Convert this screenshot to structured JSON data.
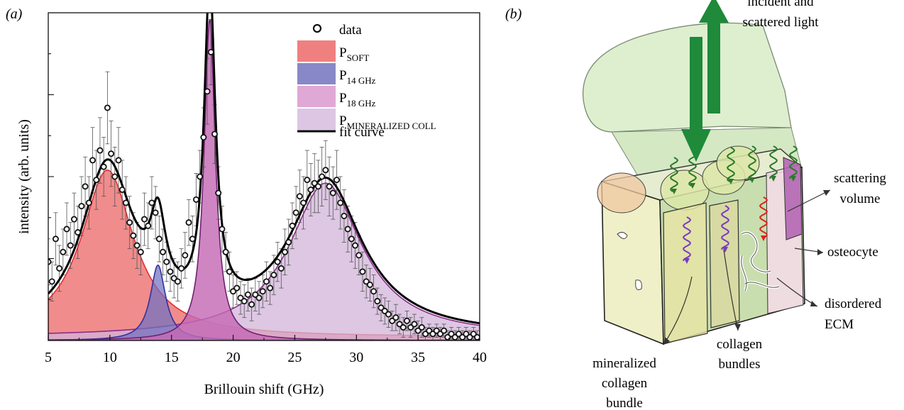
{
  "panel_a": {
    "tag": "(a)",
    "chart_data": {
      "type": "scatter",
      "xlabel": "Brillouin shift (GHz)",
      "ylabel": "intensity (arb. units)",
      "xlim": [
        5,
        40
      ],
      "ylim": [
        0,
        1
      ],
      "x_ticks": [
        "5",
        "10",
        "15",
        "20",
        "25",
        "30",
        "35",
        "40"
      ],
      "grid": false,
      "legend_position": "top-right",
      "legend": [
        {
          "key": "data",
          "label": "data",
          "sub": "",
          "kind": "marker",
          "color": "#111111"
        },
        {
          "key": "soft",
          "label": "P",
          "sub": "SOFT",
          "kind": "fill",
          "color": "#f08080"
        },
        {
          "key": "p14",
          "label": "P",
          "sub": "14 GHz",
          "kind": "fill",
          "color": "#8080c8"
        },
        {
          "key": "p18",
          "label": "P",
          "sub": "18 GHz",
          "kind": "fill",
          "color": "#e0a0d0"
        },
        {
          "key": "mineral",
          "label": "P",
          "sub": "MINERALIZED COLL",
          "kind": "fill",
          "color": "#d8bee0"
        },
        {
          "key": "fit",
          "label": "fit curve",
          "sub": "",
          "kind": "line",
          "color": "#000000"
        }
      ],
      "peaks": [
        {
          "key": "soft",
          "center": 9.8,
          "width": 2.6,
          "height": 0.51,
          "baseline": 0.01,
          "fill": "#f08080",
          "fill_opacity": 0.9,
          "stroke": "#e03030"
        },
        {
          "key": "mineral",
          "center": 27.5,
          "width": 3.6,
          "height": 0.47,
          "baseline": 0.01,
          "fill": "#d2b4da",
          "fill_opacity": 0.75,
          "stroke": "#8a2a8a"
        },
        {
          "key": "p14",
          "center": 13.9,
          "width": 0.75,
          "height": 0.23,
          "baseline": 0.0,
          "fill": "#7070c0",
          "fill_opacity": 0.72,
          "stroke": "#3030a0"
        },
        {
          "key": "p18",
          "center": 18.1,
          "width": 0.55,
          "height": 0.98,
          "baseline": 0.0,
          "fill": "#c46ab4",
          "fill_opacity": 0.82,
          "stroke": "#702070"
        }
      ],
      "fit": {
        "key": "fit",
        "color": "#000000"
      },
      "data_points": {
        "x": [
          5.0,
          5.3,
          5.6,
          5.9,
          6.2,
          6.5,
          6.8,
          7.1,
          7.4,
          7.7,
          8.0,
          8.3,
          8.6,
          8.9,
          9.2,
          9.5,
          9.8,
          10.1,
          10.4,
          10.7,
          11.0,
          11.3,
          11.6,
          11.9,
          12.2,
          12.5,
          12.8,
          13.1,
          13.4,
          13.7,
          14.0,
          14.3,
          14.6,
          14.9,
          15.2,
          15.5,
          15.8,
          16.1,
          16.4,
          16.7,
          17.0,
          17.3,
          17.6,
          17.9,
          18.2,
          18.5,
          18.8,
          19.1,
          19.4,
          19.7,
          20.0,
          20.3,
          20.6,
          20.9,
          21.2,
          21.5,
          21.8,
          22.1,
          22.4,
          22.7,
          23.0,
          23.3,
          23.6,
          23.9,
          24.2,
          24.5,
          24.8,
          25.1,
          25.4,
          25.7,
          26.0,
          26.3,
          26.6,
          26.9,
          27.2,
          27.5,
          27.8,
          28.1,
          28.4,
          28.7,
          29.0,
          29.3,
          29.6,
          29.9,
          30.2,
          30.5,
          30.8,
          31.1,
          31.4,
          31.7,
          32.0,
          32.3,
          32.6,
          32.9,
          33.2,
          33.5,
          33.8,
          34.1,
          34.4,
          34.7,
          35.0,
          35.3,
          35.6,
          35.9,
          36.2,
          36.5,
          36.8,
          37.1,
          37.4,
          37.7,
          38.0,
          38.3,
          38.6,
          38.9,
          39.2,
          39.5,
          39.8
        ],
        "y": [
          0.24,
          0.18,
          0.31,
          0.22,
          0.27,
          0.34,
          0.29,
          0.37,
          0.33,
          0.41,
          0.47,
          0.42,
          0.55,
          0.49,
          0.58,
          0.53,
          0.71,
          0.57,
          0.5,
          0.55,
          0.46,
          0.42,
          0.36,
          0.32,
          0.29,
          0.27,
          0.37,
          0.35,
          0.42,
          0.39,
          0.31,
          0.27,
          0.24,
          0.21,
          0.19,
          0.18,
          0.22,
          0.26,
          0.36,
          0.31,
          0.43,
          0.5,
          0.62,
          0.76,
          0.88,
          0.63,
          0.45,
          0.34,
          0.27,
          0.21,
          0.15,
          0.16,
          0.13,
          0.12,
          0.14,
          0.11,
          0.14,
          0.13,
          0.15,
          0.18,
          0.16,
          0.2,
          0.24,
          0.22,
          0.27,
          0.3,
          0.35,
          0.39,
          0.44,
          0.42,
          0.49,
          0.46,
          0.48,
          0.47,
          0.5,
          0.52,
          0.47,
          0.45,
          0.49,
          0.42,
          0.38,
          0.34,
          0.31,
          0.29,
          0.26,
          0.21,
          0.18,
          0.17,
          0.15,
          0.12,
          0.1,
          0.09,
          0.08,
          0.06,
          0.07,
          0.05,
          0.04,
          0.06,
          0.04,
          0.05,
          0.03,
          0.04,
          0.02,
          0.03,
          0.02,
          0.03,
          0.02,
          0.03,
          0.01,
          0.02,
          0.01,
          0.02,
          0.01,
          0.02,
          0.01,
          0.02,
          0.01
        ],
        "error": [
          0.07,
          0.06,
          0.08,
          0.07,
          0.07,
          0.08,
          0.07,
          0.08,
          0.08,
          0.09,
          0.09,
          0.08,
          0.1,
          0.09,
          0.1,
          0.09,
          0.11,
          0.1,
          0.09,
          0.1,
          0.09,
          0.08,
          0.08,
          0.07,
          0.07,
          0.07,
          0.08,
          0.07,
          0.08,
          0.08,
          0.07,
          0.07,
          0.06,
          0.06,
          0.06,
          0.06,
          0.06,
          0.07,
          0.07,
          0.07,
          0.08,
          0.08,
          0.09,
          0.1,
          0.1,
          0.09,
          0.08,
          0.07,
          0.06,
          0.06,
          0.05,
          0.05,
          0.05,
          0.05,
          0.05,
          0.05,
          0.05,
          0.05,
          0.05,
          0.06,
          0.05,
          0.06,
          0.06,
          0.06,
          0.07,
          0.07,
          0.07,
          0.08,
          0.08,
          0.08,
          0.09,
          0.08,
          0.09,
          0.08,
          0.09,
          0.09,
          0.09,
          0.08,
          0.09,
          0.08,
          0.08,
          0.07,
          0.07,
          0.07,
          0.06,
          0.06,
          0.05,
          0.05,
          0.05,
          0.04,
          0.04,
          0.04,
          0.04,
          0.03,
          0.04,
          0.03,
          0.03,
          0.03,
          0.03,
          0.03,
          0.03,
          0.03,
          0.02,
          0.02,
          0.02,
          0.02,
          0.02,
          0.02,
          0.02,
          0.02,
          0.02,
          0.02,
          0.02,
          0.02,
          0.02,
          0.02,
          0.02
        ]
      }
    }
  },
  "panel_b": {
    "tag": "(b)",
    "labels": {
      "light_1": "incident and",
      "light_2": "scattered light",
      "scattering_1": "scattering",
      "scattering_2": "volume",
      "osteocyte": "osteocyte",
      "disordered_1": "disordered",
      "disordered_2": "ECM",
      "collagen_1": "collagen",
      "collagen_2": "bundles",
      "mineral_1": "mineralized",
      "mineral_2": "collagen",
      "mineral_3": "bundle"
    },
    "colors": {
      "beam": "#d8ecc8",
      "arrow": "#1e8a3a",
      "block_front": "#eef0c4",
      "block_side": "#c8dcae",
      "block_top": "#e4ecd0",
      "wave_green": "#2a7a2a",
      "wave_violet": "#7a3ac0",
      "wave_red": "#e02020",
      "osteocyte": "#b060b0"
    }
  }
}
